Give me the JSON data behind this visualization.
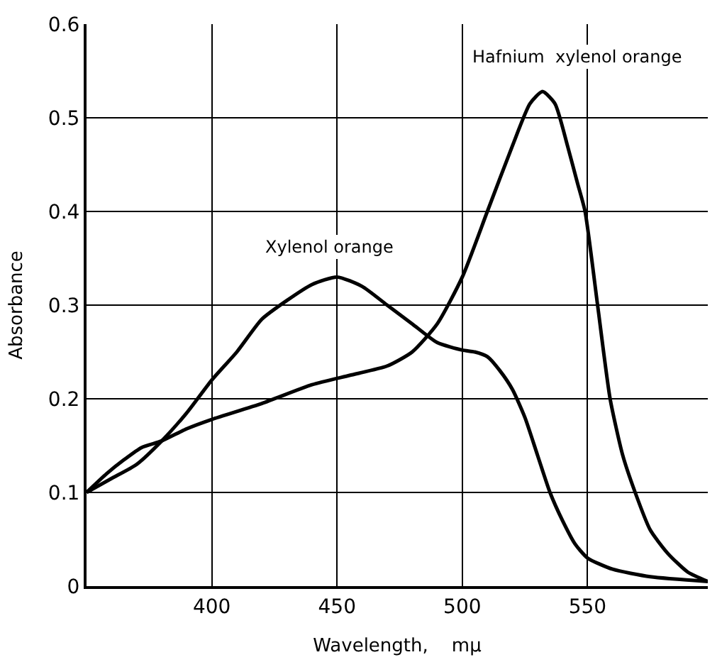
{
  "chart_data": {
    "type": "line",
    "xlabel": "Wavelength,    mμ",
    "ylabel": "Absorbance",
    "xlim": [
      350,
      598
    ],
    "ylim": [
      0,
      0.6
    ],
    "xticks": [
      400,
      450,
      500,
      550
    ],
    "yticks": [
      0,
      0.1,
      0.2,
      0.3,
      0.4,
      0.5,
      0.6
    ],
    "grid": true,
    "marker": "none",
    "line_style": "solid",
    "series": [
      {
        "color": "#000000",
        "x": [
          350,
          360,
          370,
          380,
          390,
          400,
          410,
          420,
          430,
          440,
          450,
          460,
          470,
          480,
          490,
          500,
          505,
          510,
          515,
          520,
          525,
          530,
          535,
          540,
          545,
          550,
          560,
          575,
          598
        ],
        "values": [
          0.1,
          0.115,
          0.13,
          0.155,
          0.185,
          0.22,
          0.25,
          0.285,
          0.305,
          0.322,
          0.33,
          0.32,
          0.3,
          0.28,
          0.26,
          0.252,
          0.25,
          0.245,
          0.23,
          0.21,
          0.18,
          0.14,
          0.1,
          0.07,
          0.045,
          0.03,
          0.018,
          0.01,
          0.005
        ]
      },
      {
        "color": "#000000",
        "x": [
          350,
          358,
          365,
          372,
          380,
          390,
          400,
          420,
          440,
          455,
          470,
          480,
          490,
          500,
          510,
          520,
          527,
          532,
          537,
          542,
          546,
          549,
          554,
          559,
          564,
          569,
          575,
          582,
          590,
          598
        ],
        "values": [
          0.1,
          0.12,
          0.135,
          0.148,
          0.155,
          0.168,
          0.178,
          0.195,
          0.215,
          0.225,
          0.235,
          0.25,
          0.28,
          0.33,
          0.4,
          0.47,
          0.515,
          0.528,
          0.515,
          0.47,
          0.43,
          0.4,
          0.3,
          0.2,
          0.14,
          0.1,
          0.06,
          0.035,
          0.015,
          0.005
        ]
      }
    ],
    "annotations": [
      "Xylenol orange",
      "Hafnium  xylenol orange"
    ]
  }
}
